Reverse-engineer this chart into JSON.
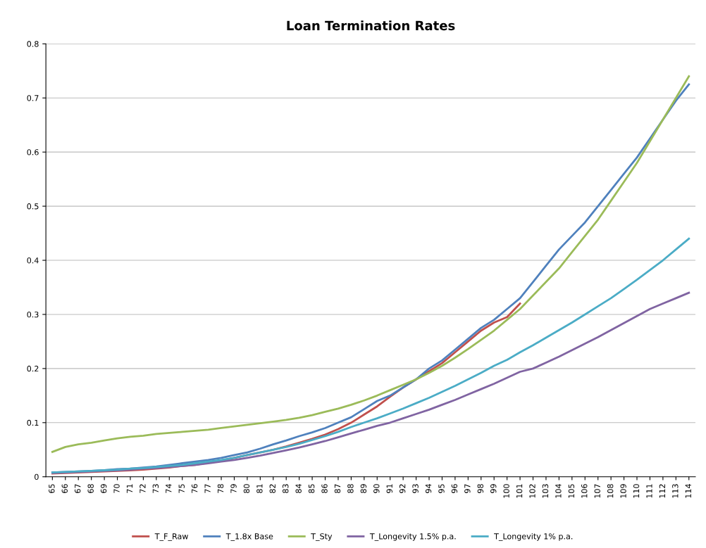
{
  "chart_data": {
    "type": "line",
    "title": "Loan Termination Rates",
    "categories": [
      "65",
      "66",
      "67",
      "68",
      "69",
      "70",
      "71",
      "72",
      "73",
      "74",
      "75",
      "76",
      "77",
      "78",
      "79",
      "80",
      "81",
      "82",
      "83",
      "84",
      "85",
      "86",
      "87",
      "88",
      "89",
      "90",
      "91",
      "92",
      "93",
      "94",
      "95",
      "96",
      "97",
      "98",
      "99",
      "100",
      "101",
      "102",
      "103",
      "104",
      "105",
      "106",
      "107",
      "108",
      "109",
      "110",
      "111",
      "112",
      "113",
      "114"
    ],
    "series": [
      {
        "name": "T_F_Raw",
        "color": "#c0504d",
        "values": [
          0.006,
          0.007,
          0.008,
          0.009,
          0.01,
          0.011,
          0.012,
          0.013,
          0.015,
          0.017,
          0.02,
          0.022,
          0.026,
          0.03,
          0.035,
          0.04,
          0.045,
          0.05,
          0.056,
          0.063,
          0.07,
          0.078,
          0.088,
          0.1,
          0.115,
          0.13,
          0.148,
          0.165,
          0.18,
          0.195,
          0.21,
          0.23,
          0.25,
          0.27,
          0.285,
          0.295,
          0.32,
          null,
          null,
          null,
          null,
          null,
          null,
          null,
          null,
          null,
          null,
          null,
          null,
          null
        ]
      },
      {
        "name": "T_1.8x Base",
        "color": "#4f81bd",
        "values": [
          0.008,
          0.009,
          0.01,
          0.011,
          0.012,
          0.014,
          0.015,
          0.017,
          0.019,
          0.022,
          0.025,
          0.028,
          0.031,
          0.035,
          0.04,
          0.045,
          0.052,
          0.06,
          0.067,
          0.075,
          0.082,
          0.09,
          0.1,
          0.11,
          0.125,
          0.14,
          0.15,
          0.165,
          0.18,
          0.2,
          0.215,
          0.235,
          0.255,
          0.275,
          0.29,
          0.31,
          0.33,
          0.36,
          0.39,
          0.42,
          0.445,
          0.47,
          0.5,
          0.53,
          0.56,
          0.59,
          0.625,
          0.66,
          0.695,
          0.725
        ]
      },
      {
        "name": "T_Sty",
        "color": "#9bbb59",
        "values": [
          0.046,
          0.055,
          0.06,
          0.063,
          0.067,
          0.071,
          0.074,
          0.076,
          0.079,
          0.081,
          0.083,
          0.085,
          0.087,
          0.09,
          0.093,
          0.096,
          0.099,
          0.102,
          0.105,
          0.109,
          0.114,
          0.12,
          0.126,
          0.133,
          0.141,
          0.15,
          0.16,
          0.17,
          0.18,
          0.192,
          0.205,
          0.22,
          0.236,
          0.253,
          0.27,
          0.29,
          0.31,
          0.335,
          0.36,
          0.385,
          0.415,
          0.445,
          0.475,
          0.51,
          0.545,
          0.58,
          0.62,
          0.66,
          0.7,
          0.74
        ]
      },
      {
        "name": "T_Longevity 1.5% p.a.",
        "color": "#8064a2",
        "values": [
          0.007,
          0.008,
          0.009,
          0.01,
          0.011,
          0.012,
          0.013,
          0.015,
          0.016,
          0.018,
          0.02,
          0.022,
          0.025,
          0.028,
          0.031,
          0.035,
          0.039,
          0.044,
          0.049,
          0.054,
          0.06,
          0.066,
          0.073,
          0.08,
          0.087,
          0.094,
          0.1,
          0.108,
          0.116,
          0.124,
          0.133,
          0.142,
          0.152,
          0.162,
          0.172,
          0.183,
          0.194,
          0.2,
          0.211,
          0.222,
          0.234,
          0.246,
          0.258,
          0.271,
          0.284,
          0.297,
          0.31,
          0.32,
          0.33,
          0.34
        ]
      },
      {
        "name": "T_Longevity 1% p.a.",
        "color": "#4bacc6",
        "values": [
          0.008,
          0.009,
          0.01,
          0.011,
          0.012,
          0.013,
          0.015,
          0.016,
          0.018,
          0.02,
          0.022,
          0.025,
          0.028,
          0.031,
          0.035,
          0.04,
          0.045,
          0.05,
          0.055,
          0.061,
          0.068,
          0.075,
          0.083,
          0.092,
          0.1,
          0.108,
          0.117,
          0.126,
          0.136,
          0.146,
          0.157,
          0.168,
          0.18,
          0.192,
          0.205,
          0.216,
          0.23,
          0.243,
          0.257,
          0.271,
          0.285,
          0.3,
          0.315,
          0.33,
          0.347,
          0.364,
          0.382,
          0.4,
          0.42,
          0.44
        ]
      }
    ],
    "ylim": [
      0,
      0.8
    ],
    "yticks": [
      0,
      0.1,
      0.2,
      0.3,
      0.4,
      0.5,
      0.6,
      0.7,
      0.8
    ],
    "grid": "y",
    "legend": "bottom"
  }
}
